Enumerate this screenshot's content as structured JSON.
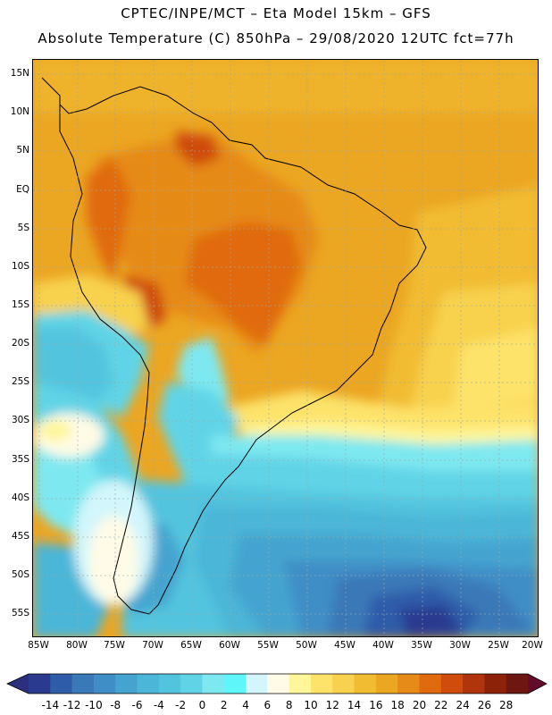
{
  "header": {
    "line1": "CPTEC/INPE/MCT –  Eta Model 15km – GFS",
    "line2": "Absolute Temperature (C) 850hPa – 29/08/2020 12UTC fct=77h"
  },
  "map": {
    "lat_labels": [
      "15N",
      "10N",
      "5N",
      "EQ",
      "5S",
      "10S",
      "15S",
      "20S",
      "25S",
      "30S",
      "35S",
      "40S",
      "45S",
      "50S",
      "55S"
    ],
    "lon_labels": [
      "85W",
      "80W",
      "75W",
      "70W",
      "65W",
      "60W",
      "55W",
      "50W",
      "45W",
      "40W",
      "35W",
      "30W",
      "25W",
      "20W"
    ]
  },
  "colorbar": {
    "labels": [
      "-14",
      "-12",
      "-10",
      "-8",
      "-6",
      "-4",
      "-2",
      "0",
      "2",
      "4",
      "6",
      "8",
      "10",
      "12",
      "14",
      "16",
      "18",
      "20",
      "22",
      "24",
      "26",
      "28"
    ],
    "colors": [
      "#2a3b8f",
      "#2f5ca8",
      "#3a78b8",
      "#3f8ec6",
      "#45a4cf",
      "#4bb6d8",
      "#53c4de",
      "#60d4e6",
      "#7ee8f0",
      "#5ef6f8",
      "#d2f6fb",
      "#fffbe6",
      "#fff69a",
      "#fde36a",
      "#f8d24e",
      "#f1bc32",
      "#eba622",
      "#e68a18",
      "#e06a0e",
      "#cf4c0c",
      "#b0350c",
      "#8c2208",
      "#6e1610"
    ],
    "arrow_left": "#2b2f7e",
    "arrow_right": "#640a2a"
  }
}
